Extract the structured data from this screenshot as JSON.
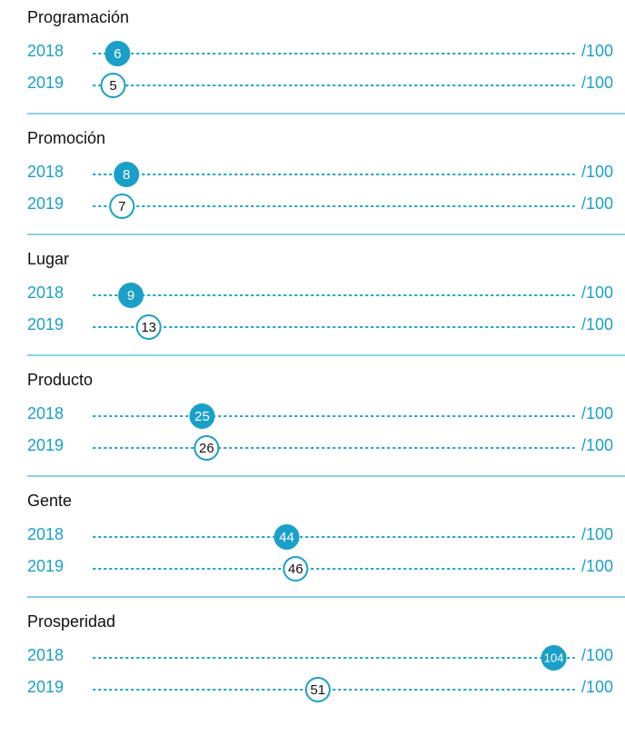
{
  "chart_data": {
    "type": "dotplot",
    "categories": [
      "Programación",
      "Promoción",
      "Lugar",
      "Producto",
      "Gente",
      "Prosperidad"
    ],
    "series": [
      {
        "name": "2018",
        "color": "#1aa0c8",
        "style": "filled",
        "values": [
          6,
          8,
          9,
          25,
          44,
          104
        ]
      },
      {
        "name": "2019",
        "color": "#1aa0c8",
        "style": "outline",
        "values": [
          5,
          7,
          13,
          26,
          46,
          51
        ]
      }
    ],
    "max_label": "/100",
    "xlim": [
      0,
      100
    ]
  }
}
